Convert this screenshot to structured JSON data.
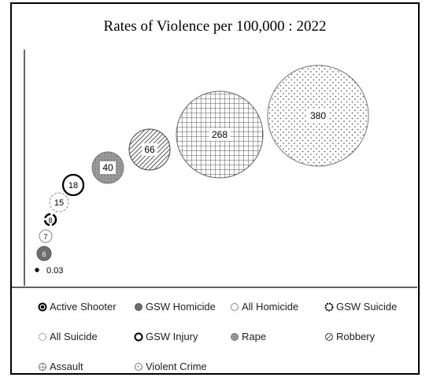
{
  "chart_data": {
    "type": "bubble",
    "title": "Rates of Violence per 100,000 : 2022",
    "xlabel": "",
    "ylabel": "",
    "series": [
      {
        "name": "Active Shooter",
        "value": 0.03,
        "label": "0.03",
        "pattern": "solid-black"
      },
      {
        "name": "GSW Homicide",
        "value": 6,
        "label": "6",
        "pattern": "solid-gray"
      },
      {
        "name": "All Homicide",
        "value": 7,
        "label": "7",
        "pattern": "thin-outline"
      },
      {
        "name": "GSW Suicide",
        "value": 8,
        "label": "8",
        "pattern": "thick-dashed"
      },
      {
        "name": "All Suicide",
        "value": 15,
        "label": "15",
        "pattern": "dashed"
      },
      {
        "name": "GSW Injury",
        "value": 18,
        "label": "18",
        "pattern": "thick-outline"
      },
      {
        "name": "Rape",
        "value": 40,
        "label": "40",
        "pattern": "gray-fill"
      },
      {
        "name": "Robbery",
        "value": 66,
        "label": "66",
        "pattern": "diagonal-hatch"
      },
      {
        "name": "Assault",
        "value": 268,
        "label": "268",
        "pattern": "grid"
      },
      {
        "name": "Violent Crime",
        "value": 380,
        "label": "380",
        "pattern": "dots"
      }
    ],
    "legend_placement": "bottom",
    "grid": false
  }
}
